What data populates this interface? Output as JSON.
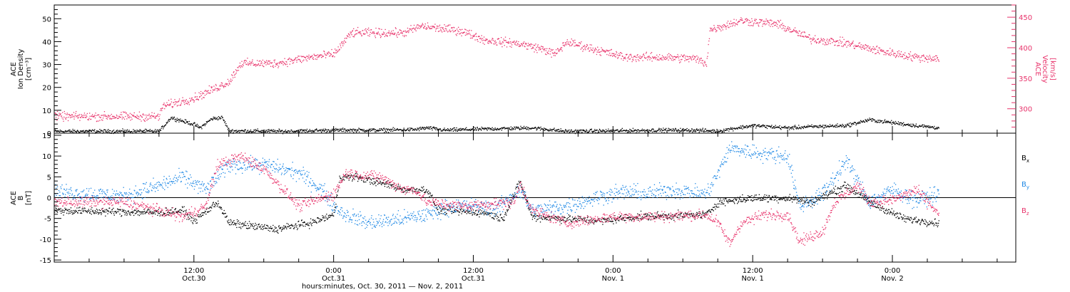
{
  "chart_data": {
    "type": "scatter",
    "xlabel": "hours:minutes, Oct. 30, 2011 — Nov.  2, 2011",
    "x_ticks": [
      {
        "time": "12:00",
        "date": "Oct.30",
        "hour": 12
      },
      {
        "time": "0:00",
        "date": "Oct.31",
        "hour": 24
      },
      {
        "time": "12:00",
        "date": "Oct.31",
        "hour": 36
      },
      {
        "time": "0:00",
        "date": "Nov. 1",
        "hour": 48
      },
      {
        "time": "12:00",
        "date": "Nov. 1",
        "hour": 60
      },
      {
        "time": "0:00",
        "date": "Nov. 2",
        "hour": 72
      }
    ],
    "x_range_hours": [
      0,
      82.6
    ],
    "panels": [
      {
        "id": "plasma",
        "ylabel_left": [
          "ACE",
          "Ion Density",
          "[cm⁻³]"
        ],
        "ylabel_right": [
          "ACE",
          "Velocity",
          "[km/s]"
        ],
        "ylim_left": [
          0,
          56
        ],
        "ylim_right": [
          260,
          470
        ],
        "yticks_left": [
          0,
          10,
          20,
          30,
          40,
          50
        ],
        "yticks_right": [
          300,
          350,
          400,
          450
        ],
        "series": [
          {
            "key": "density",
            "axis": "left",
            "color": "#000000",
            "scatter": 0.7,
            "points": [
              [
                0,
                1
              ],
              [
                9,
                1
              ],
              [
                10,
                7
              ],
              [
                12,
                4
              ],
              [
                12.5,
                2.5
              ],
              [
                13.5,
                6.5
              ],
              [
                14.4,
                7
              ],
              [
                15,
                1.2
              ],
              [
                20,
                1
              ],
              [
                24,
                1.5
              ],
              [
                26,
                1.5
              ],
              [
                28,
                1.5
              ],
              [
                31,
                1.8
              ],
              [
                32,
                2.5
              ],
              [
                33.5,
                1.5
              ],
              [
                37,
                2
              ],
              [
                41,
                2.5
              ],
              [
                44,
                1
              ],
              [
                48,
                1.2
              ],
              [
                52,
                1.5
              ],
              [
                55,
                1.5
              ],
              [
                57,
                1
              ],
              [
                58,
                2
              ],
              [
                60,
                3.5
              ],
              [
                63,
                2.5
              ],
              [
                65,
                3
              ],
              [
                68,
                3.5
              ],
              [
                70,
                6
              ],
              [
                74,
                3.5
              ],
              [
                76,
                2.5
              ]
            ]
          },
          {
            "key": "velocity",
            "axis": "right",
            "color": "#e8336b",
            "scatter": 6,
            "points": [
              [
                0,
                288
              ],
              [
                9,
                288
              ],
              [
                9.3,
                305
              ],
              [
                12,
                318
              ],
              [
                15,
                345
              ],
              [
                16,
                375
              ],
              [
                19,
                375
              ],
              [
                22,
                385
              ],
              [
                24,
                390
              ],
              [
                25.5,
                425
              ],
              [
                30,
                425
              ],
              [
                31.5,
                436
              ],
              [
                35,
                428
              ],
              [
                37,
                413
              ],
              [
                40,
                407
              ],
              [
                42,
                398
              ],
              [
                43,
                390
              ],
              [
                44,
                410
              ],
              [
                46,
                400
              ],
              [
                49,
                385
              ],
              [
                52,
                385
              ],
              [
                55,
                383
              ],
              [
                56,
                375
              ],
              [
                56.3,
                430
              ],
              [
                59,
                445
              ],
              [
                62,
                440
              ],
              [
                65,
                415
              ],
              [
                68,
                408
              ],
              [
                71,
                395
              ],
              [
                74,
                385
              ],
              [
                76,
                383
              ]
            ]
          }
        ]
      },
      {
        "id": "field",
        "ylabel_left": [
          "ACE",
          "B",
          "[nT]"
        ],
        "ylim": [
          -15.5,
          15.5
        ],
        "yticks": [
          -15,
          -10,
          -5,
          0,
          5,
          10,
          15
        ],
        "zero_line": true,
        "legend": [
          {
            "label": "B",
            "sub": "x",
            "color": "#000000"
          },
          {
            "label": "B",
            "sub": "y",
            "color": "#1e88e5"
          },
          {
            "label": "B",
            "sub": "z",
            "color": "#e8336b"
          }
        ],
        "series": [
          {
            "key": "bx",
            "color": "#000000",
            "scatter": 0.8,
            "points": [
              [
                0,
                -3
              ],
              [
                9,
                -3.5
              ],
              [
                11,
                -3
              ],
              [
                12,
                -5.5
              ],
              [
                14,
                -1
              ],
              [
                15,
                -6
              ],
              [
                19,
                -7.5
              ],
              [
                22,
                -6
              ],
              [
                24,
                -4
              ],
              [
                24.5,
                5
              ],
              [
                26,
                5
              ],
              [
                29,
                3
              ],
              [
                30,
                2
              ],
              [
                32,
                2
              ],
              [
                33,
                -3
              ],
              [
                37,
                -3.5
              ],
              [
                38.5,
                -5
              ],
              [
                40,
                4
              ],
              [
                41,
                -4.5
              ],
              [
                47,
                -5.5
              ],
              [
                50,
                -4.5
              ],
              [
                56,
                -4
              ],
              [
                57,
                -1
              ],
              [
                60,
                0
              ],
              [
                63,
                0
              ],
              [
                65,
                -1
              ],
              [
                68,
                3
              ],
              [
                70,
                -1
              ],
              [
                73,
                -5
              ],
              [
                76,
                -6
              ]
            ]
          },
          {
            "key": "by",
            "color": "#1e88e5",
            "scatter": 1.6,
            "points": [
              [
                0,
                1.5
              ],
              [
                6,
                0.5
              ],
              [
                9,
                3
              ],
              [
                11,
                5
              ],
              [
                13,
                2
              ],
              [
                15,
                8
              ],
              [
                18,
                8
              ],
              [
                21,
                6
              ],
              [
                23,
                2
              ],
              [
                24,
                -2
              ],
              [
                25,
                -4
              ],
              [
                27,
                -6
              ],
              [
                30,
                -5
              ],
              [
                32,
                -4
              ],
              [
                34,
                -2
              ],
              [
                36,
                -2
              ],
              [
                38,
                -2.5
              ],
              [
                40,
                2
              ],
              [
                41,
                -3
              ],
              [
                44,
                -2
              ],
              [
                47,
                0.5
              ],
              [
                49,
                1.5
              ],
              [
                51,
                1
              ],
              [
                53,
                2
              ],
              [
                56,
                1
              ],
              [
                57,
                6
              ],
              [
                58,
                12
              ],
              [
                60,
                11
              ],
              [
                63,
                10
              ],
              [
                64,
                -2
              ],
              [
                66,
                1
              ],
              [
                68,
                9
              ],
              [
                70,
                -1
              ],
              [
                72,
                2
              ],
              [
                74,
                -0.5
              ],
              [
                76,
                1
              ]
            ]
          },
          {
            "key": "bz",
            "color": "#e8336b",
            "scatter": 1.1,
            "points": [
              [
                0,
                -1
              ],
              [
                6,
                -1
              ],
              [
                9,
                -3
              ],
              [
                11,
                -4.5
              ],
              [
                13,
                -2
              ],
              [
                14,
                8
              ],
              [
                16,
                10
              ],
              [
                18,
                7
              ],
              [
                21,
                -2
              ],
              [
                24,
                1
              ],
              [
                25,
                6
              ],
              [
                28,
                5
              ],
              [
                30,
                2
              ],
              [
                31,
                2
              ],
              [
                32,
                -1
              ],
              [
                35,
                -2
              ],
              [
                37,
                -1.5
              ],
              [
                39.5,
                -1
              ],
              [
                40,
                3.5
              ],
              [
                41,
                -3
              ],
              [
                44,
                -6
              ],
              [
                48,
                -4.5
              ],
              [
                52,
                -4.5
              ],
              [
                56,
                -4
              ],
              [
                57,
                -6
              ],
              [
                58,
                -11
              ],
              [
                59,
                -6
              ],
              [
                61,
                -4
              ],
              [
                63,
                -4
              ],
              [
                64,
                -10.5
              ],
              [
                66,
                -8
              ],
              [
                67,
                -1
              ],
              [
                69,
                3
              ],
              [
                70,
                -1
              ],
              [
                72,
                -0.5
              ],
              [
                74,
                2
              ],
              [
                76,
                -4
              ]
            ]
          }
        ]
      }
    ]
  }
}
